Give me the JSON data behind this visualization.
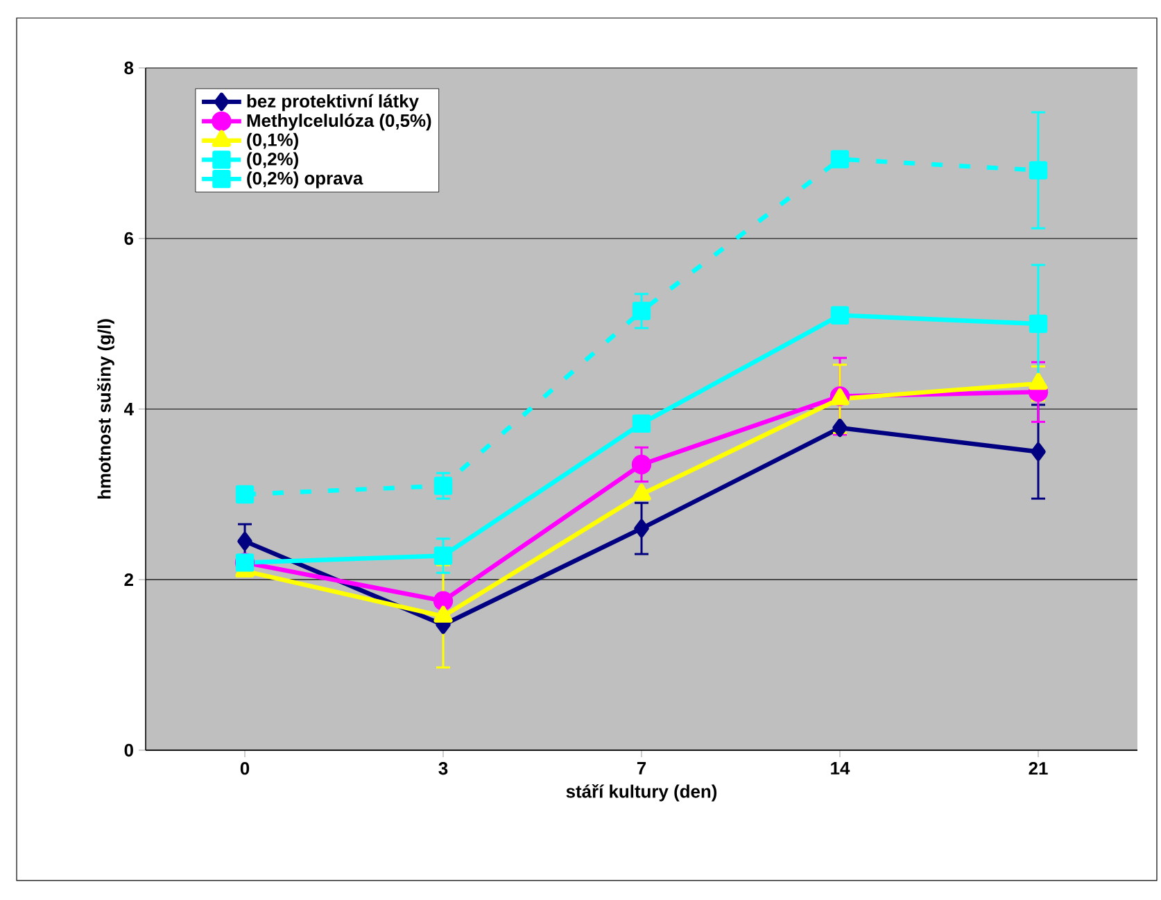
{
  "chart_data": {
    "type": "line",
    "xlabel": "stáří kultury (den)",
    "ylabel": "hmotnost sušiny (g/l)",
    "categories": [
      "0",
      "3",
      "7",
      "14",
      "21"
    ],
    "ylim": [
      0,
      8
    ],
    "yticks": [
      0,
      2,
      4,
      6,
      8
    ],
    "grid": "y",
    "legend": "top left",
    "series": [
      {
        "name": "bez protektivní látky",
        "color": "#000080",
        "marker": "diamond",
        "line_style": "solid",
        "values": [
          2.45,
          1.47,
          2.6,
          3.78,
          3.5
        ],
        "errors": [
          0.2,
          null,
          0.3,
          null,
          0.55
        ]
      },
      {
        "name": "Methylcelulóza (0,5%)",
        "color": "#ff00ff",
        "marker": "circle",
        "line_style": "solid",
        "values": [
          2.2,
          1.75,
          3.35,
          4.15,
          4.2
        ],
        "errors": [
          null,
          null,
          0.2,
          0.45,
          0.35
        ]
      },
      {
        "name": "(0,1%)",
        "color": "#ffff00",
        "marker": "triangle",
        "line_style": "solid",
        "values": [
          2.1,
          1.57,
          3.0,
          4.12,
          4.3
        ],
        "errors": [
          null,
          0.6,
          null,
          0.4,
          0.2
        ]
      },
      {
        "name": "(0,2%)",
        "color": "#00ffff",
        "marker": "square",
        "line_style": "dashed",
        "values": [
          3.0,
          3.1,
          5.15,
          6.93,
          6.8
        ],
        "errors": [
          null,
          0.15,
          0.2,
          null,
          0.68
        ]
      },
      {
        "name": "(0,2%) oprava",
        "color": "#00ffff",
        "marker": "square",
        "line_style": "solid",
        "values": [
          2.2,
          2.28,
          3.83,
          5.1,
          5.0
        ],
        "errors": [
          null,
          0.2,
          null,
          null,
          0.69
        ]
      }
    ]
  }
}
